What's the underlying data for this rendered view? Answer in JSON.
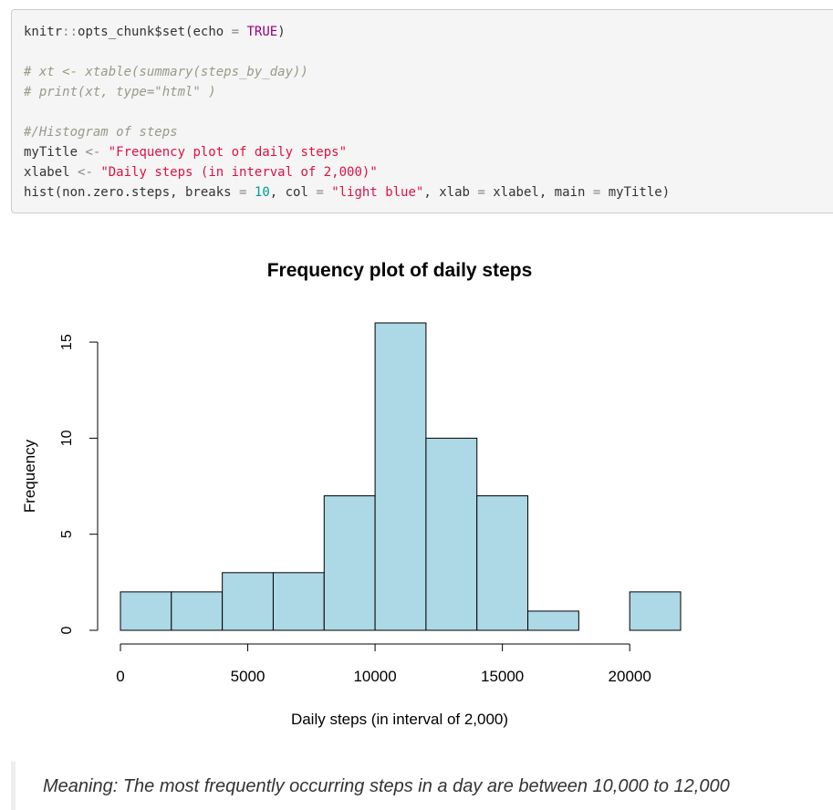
{
  "code": {
    "lines": [
      [
        {
          "t": "knitr",
          "c": "fn"
        },
        {
          "t": "::",
          "c": "op"
        },
        {
          "t": "opts_chunk$set",
          "c": "fn"
        },
        {
          "t": "(echo ",
          "c": "fn"
        },
        {
          "t": "=",
          "c": "op"
        },
        {
          "t": " ",
          "c": "fn"
        },
        {
          "t": "TRUE",
          "c": "kw"
        },
        {
          "t": ")",
          "c": "fn"
        }
      ],
      [],
      [
        {
          "t": "# xt <- xtable(summary(steps_by_day))",
          "c": "com"
        }
      ],
      [
        {
          "t": "# print(xt, type=\"html\" )",
          "c": "com"
        }
      ],
      [],
      [
        {
          "t": "#/Histogram of steps",
          "c": "com"
        }
      ],
      [
        {
          "t": "myTitle ",
          "c": "fn"
        },
        {
          "t": "<-",
          "c": "op"
        },
        {
          "t": " ",
          "c": "fn"
        },
        {
          "t": "\"Frequency plot of daily steps\"",
          "c": "str"
        }
      ],
      [
        {
          "t": "xlabel ",
          "c": "fn"
        },
        {
          "t": "<-",
          "c": "op"
        },
        {
          "t": " ",
          "c": "fn"
        },
        {
          "t": "\"Daily steps (in interval of 2,000)\"",
          "c": "str"
        }
      ],
      [
        {
          "t": "hist(non.zero.steps, breaks ",
          "c": "fn"
        },
        {
          "t": "=",
          "c": "op"
        },
        {
          "t": " ",
          "c": "fn"
        },
        {
          "t": "10",
          "c": "num"
        },
        {
          "t": ", col ",
          "c": "fn"
        },
        {
          "t": "=",
          "c": "op"
        },
        {
          "t": " ",
          "c": "fn"
        },
        {
          "t": "\"light blue\"",
          "c": "str"
        },
        {
          "t": ", xlab ",
          "c": "fn"
        },
        {
          "t": "=",
          "c": "op"
        },
        {
          "t": " xlabel, main ",
          "c": "fn"
        },
        {
          "t": "=",
          "c": "op"
        },
        {
          "t": " myTitle)",
          "c": "fn"
        }
      ]
    ]
  },
  "chart_data": {
    "type": "bar",
    "title": "Frequency plot of daily steps",
    "xlabel": "Daily steps (in interval of 2,000)",
    "ylabel": "Frequency",
    "bins": [
      {
        "from": 0,
        "to": 2000,
        "count": 2
      },
      {
        "from": 2000,
        "to": 4000,
        "count": 2
      },
      {
        "from": 4000,
        "to": 6000,
        "count": 3
      },
      {
        "from": 6000,
        "to": 8000,
        "count": 3
      },
      {
        "from": 8000,
        "to": 10000,
        "count": 7
      },
      {
        "from": 10000,
        "to": 12000,
        "count": 16
      },
      {
        "from": 12000,
        "to": 14000,
        "count": 10
      },
      {
        "from": 14000,
        "to": 16000,
        "count": 7
      },
      {
        "from": 16000,
        "to": 18000,
        "count": 1
      },
      {
        "from": 18000,
        "to": 20000,
        "count": 0
      },
      {
        "from": 20000,
        "to": 22000,
        "count": 2
      }
    ],
    "xticks": [
      0,
      5000,
      10000,
      15000,
      20000
    ],
    "xtick_labels": [
      "0",
      "5000",
      "10000",
      "15000",
      "20000"
    ],
    "yticks": [
      0,
      5,
      10,
      15
    ],
    "ytick_labels": [
      "0",
      "5",
      "10",
      "15"
    ],
    "xlim": [
      0,
      22000
    ],
    "ylim": [
      0,
      16
    ],
    "bar_color": "#add8e6",
    "grid": false
  },
  "note": {
    "text": "Meaning: The most frequently occurring steps in a day are between 10,000 to 12,000"
  }
}
